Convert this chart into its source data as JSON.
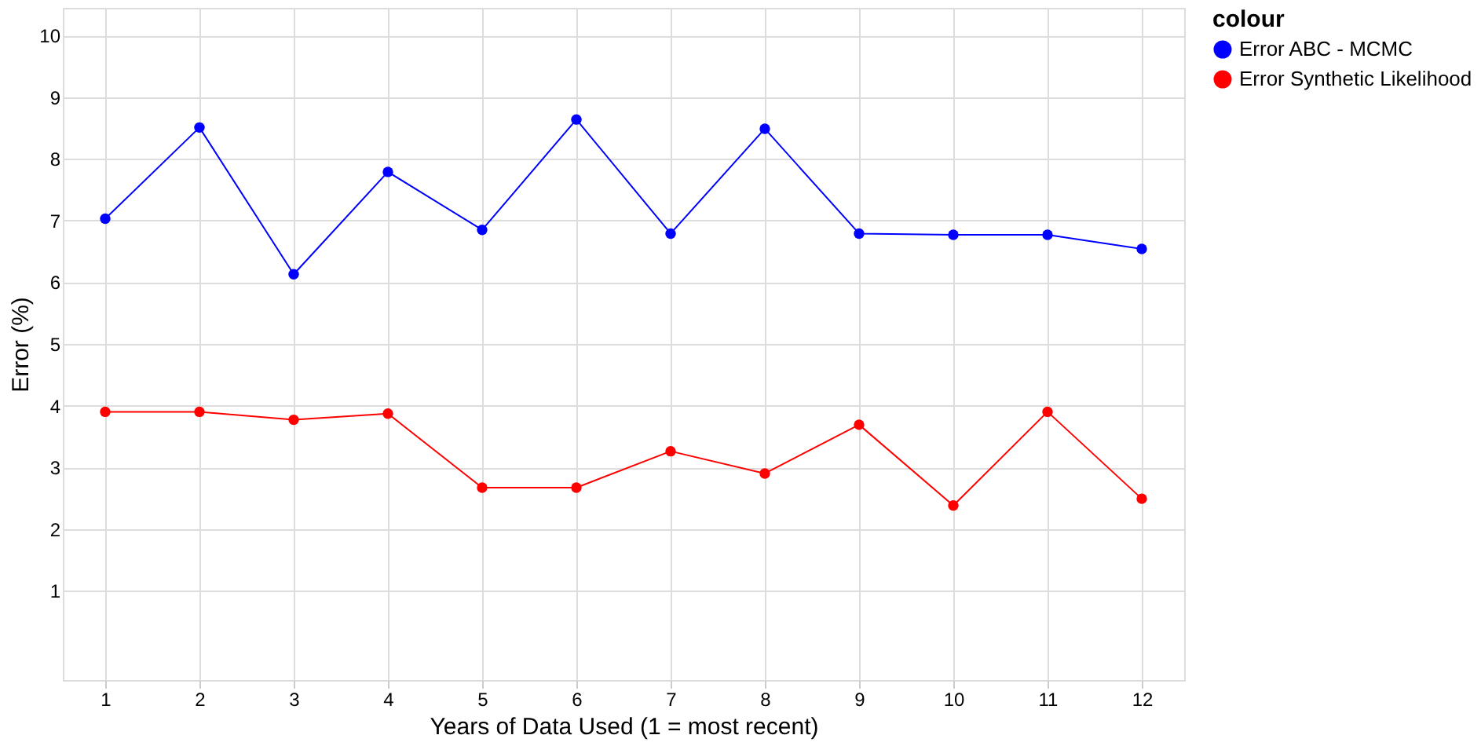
{
  "chart_data": {
    "type": "line",
    "xlabel": "Years of Data Used (1 = most recent)",
    "ylabel": "Error (%)",
    "legend_title": "colour",
    "x": [
      1,
      2,
      3,
      4,
      5,
      6,
      7,
      8,
      9,
      10,
      11,
      12
    ],
    "series": [
      {
        "name": "Error ABC - MCMC",
        "color": "#0000ff",
        "values": [
          7.03,
          8.51,
          6.13,
          7.79,
          6.85,
          8.64,
          6.79,
          8.49,
          6.79,
          6.77,
          6.77,
          6.54
        ]
      },
      {
        "name": "Error Synthetic Likelihood",
        "color": "#ff0000",
        "values": [
          3.9,
          3.9,
          3.77,
          3.87,
          2.67,
          2.67,
          3.26,
          2.9,
          3.69,
          2.38,
          3.9,
          2.49
        ]
      }
    ],
    "xlim": [
      0.55,
      12.45
    ],
    "xticks": [
      1,
      2,
      3,
      4,
      5,
      6,
      7,
      8,
      9,
      10,
      11,
      12
    ],
    "ylim": [
      -0.45,
      10.45
    ],
    "yticks": [
      1,
      2,
      3,
      4,
      5,
      6,
      7,
      8,
      9,
      10
    ],
    "grid": true,
    "legend": "right",
    "marker": "circle",
    "line_style": "solid"
  }
}
